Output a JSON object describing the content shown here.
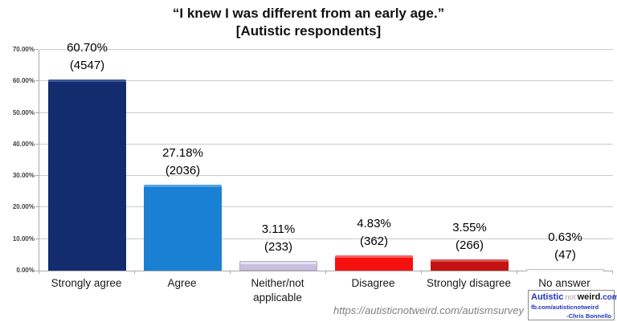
{
  "title": {
    "line1": "“I knew I was different from an early age.”",
    "line2": "[Autistic respondents]"
  },
  "chart_data": {
    "type": "bar",
    "title": "“I knew I was different from an early age.” [Autistic respondents]",
    "categories": [
      "Strongly agree",
      "Agree",
      "Neither/not applicable",
      "Disagree",
      "Strongly disagree",
      "No answer"
    ],
    "values": [
      60.7,
      27.18,
      3.11,
      4.83,
      3.55,
      0.63
    ],
    "counts": [
      4547,
      2036,
      233,
      362,
      266,
      47
    ],
    "value_labels": [
      "60.70%",
      "27.18%",
      "3.11%",
      "4.83%",
      "3.55%",
      "0.63%"
    ],
    "count_labels": [
      "(4547)",
      "(2036)",
      "(233)",
      "(362)",
      "(266)",
      "(47)"
    ],
    "bar_colors": [
      "#132c6e",
      "#1a80d4",
      "#c9c0e0",
      "#f61111",
      "#c51212",
      "#f4f2f5"
    ],
    "bar_highlights": [
      "#3f5a9e",
      "#5aa9e8",
      "#e9e4f4",
      "#fb6a6a",
      "#d85f5f",
      "#ffffff"
    ],
    "bar_borders": [
      null,
      null,
      "#b3a9cc",
      null,
      null,
      "#bfbfbf"
    ],
    "xlabel": "",
    "ylabel": "",
    "ylim": [
      0,
      70
    ],
    "ytick_labels": [
      "0.00%",
      "10.00%",
      "20.00%",
      "30.00%",
      "40.00%",
      "50.00%",
      "60.00%",
      "70.00%"
    ],
    "grid": true,
    "legend": false
  },
  "footer": {
    "watermark": "https://autisticnotweird.com/autismsurvey",
    "logo": {
      "brand_autistic": "Autistic",
      "brand_not": "not",
      "brand_weird": "weird",
      "brand_com": ".com",
      "fb": "fb.com/autisticnotweird",
      "author": "-Chris Bonnello"
    }
  },
  "colors": {
    "logo_blue": "#2233bb",
    "grid": "#cbcbcb",
    "axis": "#a9a9a9",
    "watermark_gray": "#7f7f7f"
  }
}
